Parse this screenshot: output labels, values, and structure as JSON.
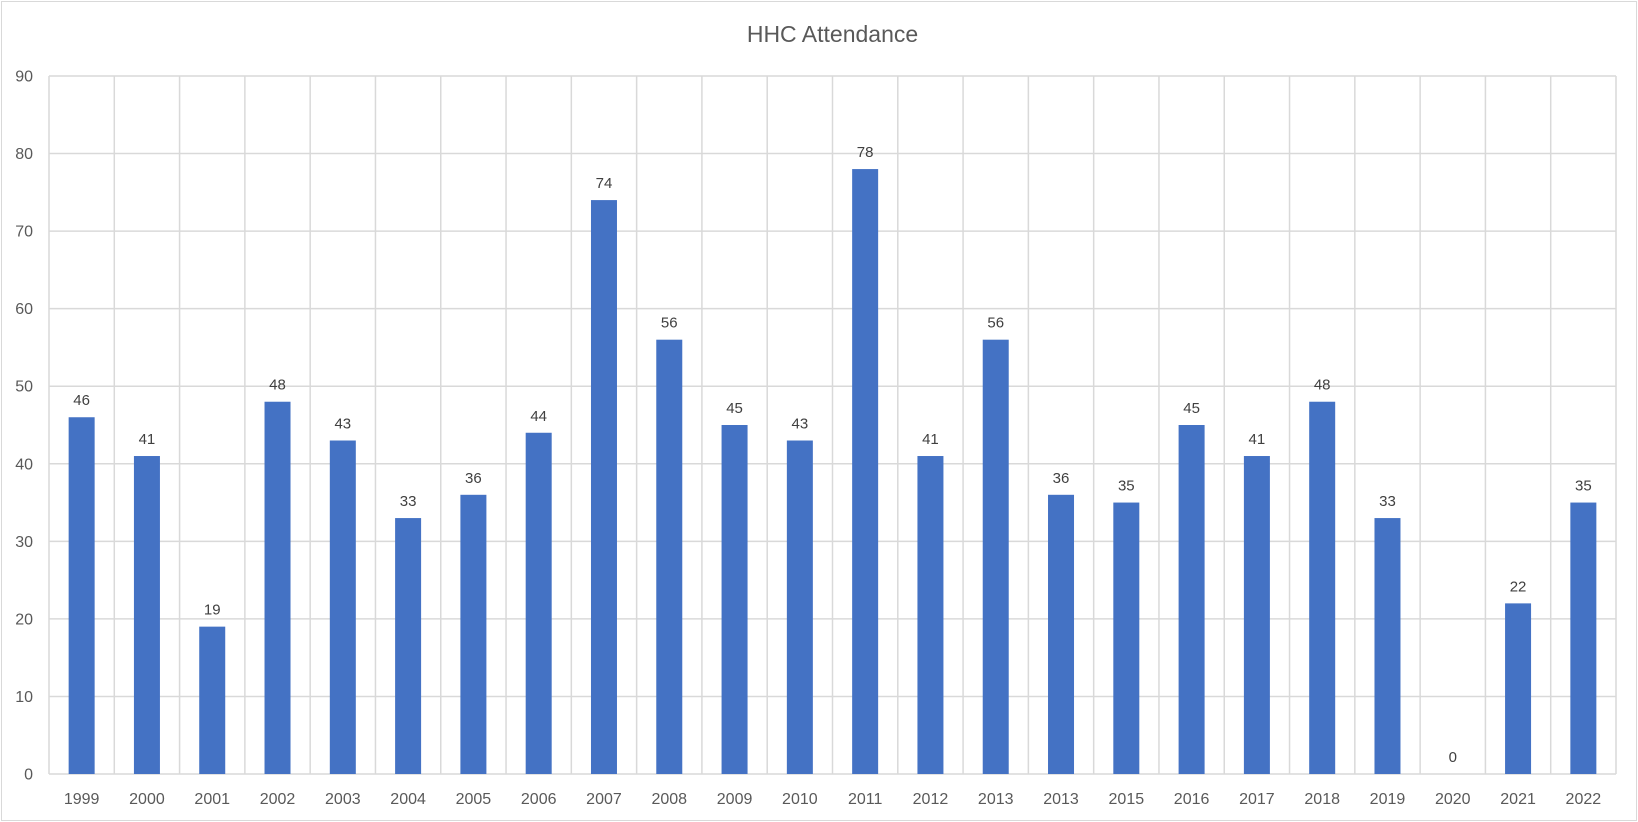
{
  "chart_data": {
    "type": "bar",
    "title": "HHC Attendance",
    "xlabel": "",
    "ylabel": "",
    "categories": [
      "1999",
      "2000",
      "2001",
      "2002",
      "2003",
      "2004",
      "2005",
      "2006",
      "2007",
      "2008",
      "2009",
      "2010",
      "2011",
      "2012",
      "2013",
      "2013",
      "2015",
      "2016",
      "2017",
      "2018",
      "2019",
      "2020",
      "2021",
      "2022"
    ],
    "values": [
      46,
      41,
      19,
      48,
      43,
      33,
      36,
      44,
      74,
      56,
      45,
      43,
      78,
      41,
      56,
      36,
      35,
      45,
      41,
      48,
      33,
      0,
      22,
      35
    ],
    "ylim": [
      0,
      90
    ],
    "yticks": [
      0,
      10,
      20,
      30,
      40,
      50,
      60,
      70,
      80,
      90
    ],
    "grid": "on",
    "legend": "none",
    "data_labels": "on",
    "bar_color": "#4472C4",
    "grid_color": "#d9d9d9"
  }
}
